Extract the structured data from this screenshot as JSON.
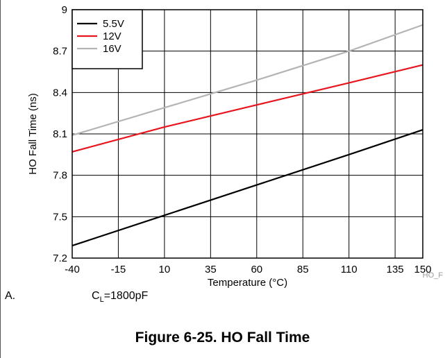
{
  "chart_data": {
    "type": "line",
    "xlabel": "Temperature (°C)",
    "ylabel": "HO Fall Time (ns)",
    "xlim": [
      -40,
      150
    ],
    "ylim": [
      7.2,
      9
    ],
    "xticks": [
      -40,
      -15,
      10,
      35,
      60,
      85,
      110,
      135,
      150
    ],
    "yticks": [
      7.2,
      7.5,
      7.8,
      8.1,
      8.4,
      8.7,
      9
    ],
    "grid": true,
    "legend_position": "top-left",
    "series": [
      {
        "name": "5.5V",
        "color": "#000000",
        "x": [
          -40,
          10,
          60,
          110,
          150
        ],
        "y": [
          7.29,
          7.51,
          7.73,
          7.95,
          8.13
        ]
      },
      {
        "name": "12V",
        "color": "#e8141e",
        "x": [
          -40,
          10,
          60,
          110,
          150
        ],
        "y": [
          7.97,
          8.15,
          8.31,
          8.47,
          8.6
        ]
      },
      {
        "name": "16V",
        "color": "#b4b4b4",
        "x": [
          -40,
          10,
          60,
          110,
          150
        ],
        "y": [
          8.09,
          8.29,
          8.49,
          8.7,
          8.89
        ]
      }
    ]
  },
  "figure_tag": "HO_F",
  "note": {
    "letter": "A.",
    "cl_prefix": "C",
    "cl_sub": "L",
    "cl_value": "=1800pF"
  },
  "caption": "Figure 6-25. HO Fall Time"
}
